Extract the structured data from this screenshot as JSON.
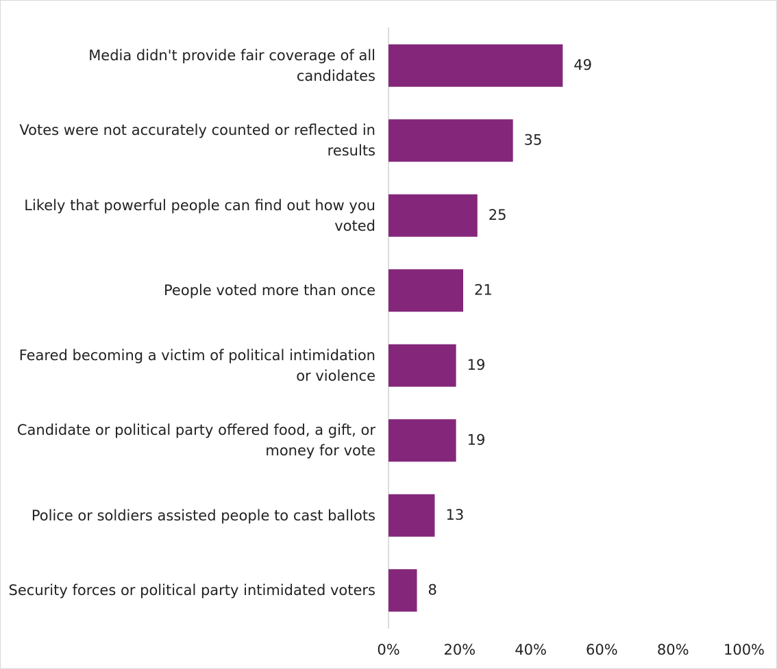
{
  "chart_data": {
    "type": "bar",
    "orientation": "horizontal",
    "categories": [
      "Media didn't provide fair coverage of all candidates",
      "Votes were not accurately counted or reflected in results",
      "Likely that powerful people can find out how you voted",
      "People voted more than once",
      "Feared becoming a victim of political intimidation or violence",
      "Candidate or political party offered food, a gift, or money for vote",
      "Police or soldiers assisted people to cast ballots",
      "Security forces or political party intimidated voters"
    ],
    "values": [
      49,
      35,
      25,
      21,
      19,
      19,
      13,
      8
    ],
    "color": "#84277b",
    "xlim": [
      0,
      100
    ],
    "xticks": [
      {
        "value": 0,
        "label": "0%"
      },
      {
        "value": 20,
        "label": "20%"
      },
      {
        "value": 40,
        "label": "40%"
      },
      {
        "value": 60,
        "label": "60%"
      },
      {
        "value": 80,
        "label": "80%"
      },
      {
        "value": 100,
        "label": "100%"
      }
    ],
    "grid": false
  }
}
